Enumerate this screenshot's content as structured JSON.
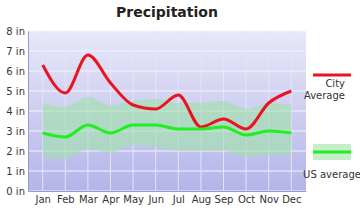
{
  "chart_data": {
    "type": "line",
    "title": "Precipitation",
    "categories": [
      "Jan",
      "Feb",
      "Mar",
      "Apr",
      "May",
      "Jun",
      "Jul",
      "Aug",
      "Sep",
      "Oct",
      "Nov",
      "Dec"
    ],
    "series": [
      {
        "name": "City Average",
        "color": "#e8141e",
        "values": [
          6.3,
          4.9,
          6.8,
          5.4,
          4.3,
          4.1,
          4.8,
          3.2,
          3.6,
          3.1,
          4.4,
          5.0
        ]
      },
      {
        "name": "US average",
        "color": "#22ee22",
        "values": [
          2.9,
          2.7,
          3.3,
          2.9,
          3.3,
          3.3,
          3.1,
          3.1,
          3.2,
          2.8,
          3.0,
          2.9
        ],
        "range_low": [
          1.7,
          1.6,
          2.1,
          1.9,
          2.3,
          2.2,
          2.0,
          2.0,
          2.0,
          1.7,
          1.8,
          1.8
        ],
        "range_high": [
          4.4,
          4.2,
          4.7,
          4.3,
          4.5,
          4.6,
          4.4,
          4.4,
          4.5,
          4.1,
          4.4,
          4.3
        ]
      }
    ],
    "ylim": [
      0,
      8
    ],
    "yticks": [
      {
        "value": 0,
        "label": "0 in"
      },
      {
        "value": 1,
        "label": "1 in"
      },
      {
        "value": 2,
        "label": "2 in"
      },
      {
        "value": 3,
        "label": "3 in"
      },
      {
        "value": 4,
        "label": "4 in"
      },
      {
        "value": 5,
        "label": "5 in"
      },
      {
        "value": 6,
        "label": "6 in"
      },
      {
        "value": 7,
        "label": "7 in"
      },
      {
        "value": 8,
        "label": "8 in"
      }
    ],
    "grid": true,
    "legend": "right"
  }
}
